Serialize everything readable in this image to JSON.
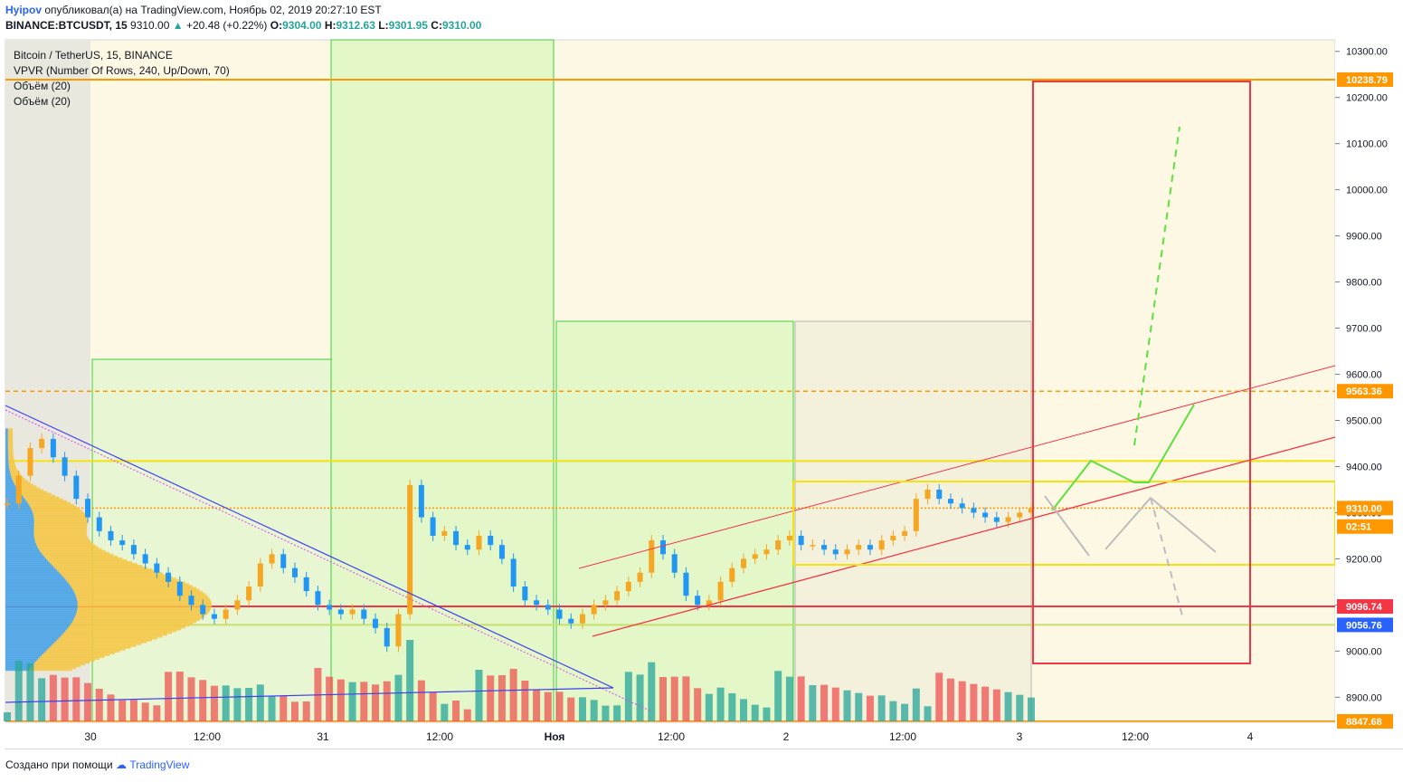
{
  "header": {
    "author": "Hyipov",
    "published": "опубликовал(а) на TradingView.com, Ноябрь 02, 2019 20:27:10 EST",
    "symbol": "BINANCE:BTCUSDT, 15",
    "last": "9310.00",
    "arrow": "▲",
    "change": "+20.48 (+0.22%)",
    "o_label": "O:",
    "o_val": "9304.00",
    "h_label": "H:",
    "h_val": "9312.63",
    "l_label": "L:",
    "l_val": "9301.95",
    "c_label": "C:",
    "c_val": "9310.00"
  },
  "legend": [
    "Bitcoin / TetherUS, 15, BINANCE",
    "VPVR (Number Of Rows, 240, Up/Down, 70)",
    "Объём (20)",
    "Объём (20)"
  ],
  "footer": {
    "text": "Создано при помощи",
    "brand": "TradingView"
  },
  "colors": {
    "up": "#26a69a",
    "down": "#ef5350",
    "candle_up": "#f5a623",
    "candle_down": "#2196f3",
    "bg": "#fdf8e4",
    "green_zone": "#d9f5c0",
    "red": "#f23645",
    "yellow": "#f4e20f",
    "orange": "#ff9800",
    "blue": "#2962ff"
  },
  "chart_data": {
    "type": "line",
    "title": "Bitcoin / TetherUS, 15, BINANCE",
    "ylim": [
      8847.68,
      10325
    ],
    "price_axis_ticks": [
      10300,
      10200,
      10100,
      10000,
      9900,
      9800,
      9700,
      9600,
      9500,
      9400,
      9300,
      9200,
      9100,
      9000,
      8900
    ],
    "price_axis_tick_labels": [
      "10300.00",
      "10200.00",
      "10100.00",
      "10000.00",
      "9900.00",
      "9800.00",
      "9700.00",
      "9600.00",
      "9500.00",
      "9400.00",
      "9300.00",
      "9200.00",
      "9100.00",
      "9000.00",
      "8900.00"
    ],
    "time_axis_labels": [
      "30",
      "12:00",
      "31",
      "12:00",
      "Ноя",
      "12:00",
      "2",
      "12:00",
      "3",
      "12:00",
      "4"
    ],
    "price_markers": [
      {
        "label": "10238.79",
        "value": 10238.79,
        "color": "#ff9800"
      },
      {
        "label": "9563.36",
        "value": 9563.36,
        "color": "#ff9800"
      },
      {
        "label": "9310.00",
        "value": 9310.0,
        "color": "#ff9800"
      },
      {
        "label": "02:51",
        "value": 9270,
        "color": "#ff9800"
      },
      {
        "label": "9096.74",
        "value": 9096.74,
        "color": "#f23645"
      },
      {
        "label": "9056.76",
        "value": 9056.76,
        "color": "#2962ff"
      },
      {
        "label": "8847.68",
        "value": 8847.68,
        "color": "#ff9800"
      }
    ],
    "horizontal_levels": [
      {
        "value": 10238.79,
        "color": "#ff9800",
        "style": "solid"
      },
      {
        "value": 9563.36,
        "color": "#ff9800",
        "style": "dashed"
      },
      {
        "value": 9310.0,
        "color": "#ff9800",
        "style": "dotted"
      },
      {
        "value": 9412,
        "color": "#f4e20f",
        "style": "solid"
      },
      {
        "value": 9096.74,
        "color": "#f23645",
        "style": "solid"
      },
      {
        "value": 9056.76,
        "color": "#c8e06a",
        "style": "solid"
      },
      {
        "value": 8847.68,
        "color": "#ff9800",
        "style": "solid"
      }
    ],
    "series": [
      {
        "values": [
          9320,
          9380,
          9440,
          9460,
          9420,
          9380,
          9330,
          9290,
          9260,
          9240,
          9230,
          9210,
          9190,
          9170,
          9150,
          9120,
          9100,
          9080,
          9070,
          9090,
          9110,
          9140,
          9190,
          9210,
          9180,
          9160,
          9130,
          9100,
          9090,
          9080,
          9090,
          9070,
          9050,
          9010,
          9080,
          9360,
          9290,
          9250,
          9260,
          9230,
          9220,
          9250,
          9230,
          9200,
          9140,
          9110,
          9100,
          9090,
          9070,
          9060,
          9080,
          9100,
          9110,
          9130,
          9150,
          9170,
          9240,
          9210,
          9170,
          9120,
          9100,
          9110,
          9150,
          9180,
          9200,
          9210,
          9220,
          9240,
          9250,
          9230,
          9230,
          9220,
          9210,
          9220,
          9230,
          9220,
          9240,
          9250,
          9260,
          9330,
          9350,
          9330,
          9320,
          9310,
          9300,
          9290,
          9280,
          9290,
          9300,
          9310
        ]
      }
    ]
  }
}
